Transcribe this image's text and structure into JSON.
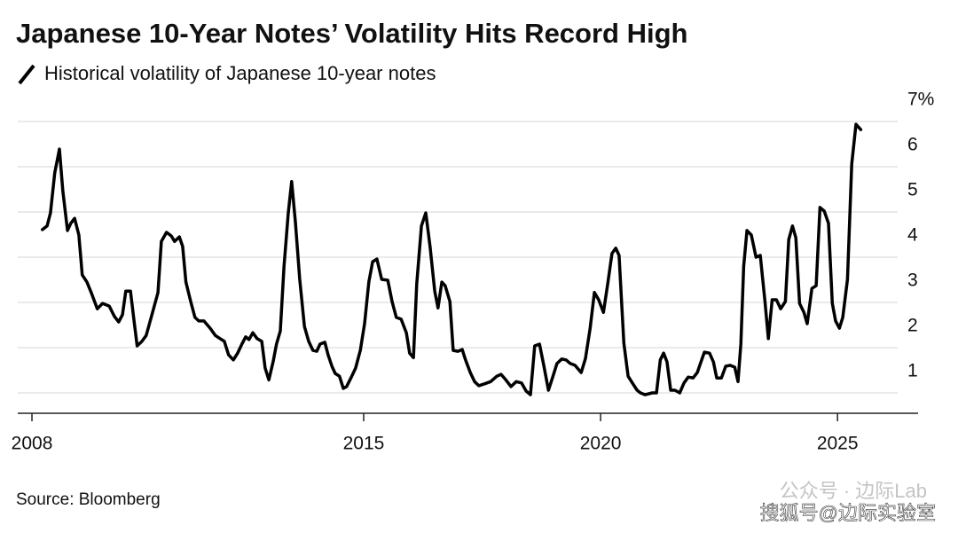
{
  "chart_data": {
    "type": "line",
    "title": "Japanese 10-Year Notes’ Volatility Hits Record High",
    "subtitle": "Historical volatility of Japanese 10-year notes",
    "source": "Source: Bloomberg",
    "watermark": [
      "公众号 · 边际Lab",
      "搜狐号@边际实验室"
    ],
    "color": "#000000",
    "x": [
      2008.22,
      2008.32,
      2008.39,
      2008.48,
      2008.58,
      2008.65,
      2008.75,
      2008.82,
      2008.9,
      2008.99,
      2009.06,
      2009.16,
      2009.25,
      2009.38,
      2009.49,
      2009.63,
      2009.74,
      2009.83,
      2009.91,
      2009.98,
      2010.08,
      2010.15,
      2010.22,
      2010.32,
      2010.41,
      2010.54,
      2010.66,
      2010.73,
      2010.84,
      2010.94,
      2011.01,
      2011.11,
      2011.18,
      2011.25,
      2011.35,
      2011.44,
      2011.52,
      2011.63,
      2011.76,
      2011.87,
      2011.97,
      2012.06,
      2012.15,
      2012.25,
      2012.34,
      2012.43,
      2012.51,
      2012.58,
      2012.66,
      2012.75,
      2012.85,
      2012.92,
      2013.0,
      2013.09,
      2013.16,
      2013.24,
      2013.32,
      2013.41,
      2013.48,
      2013.56,
      2013.65,
      2013.75,
      2013.84,
      2013.93,
      2014.01,
      2014.08,
      2014.18,
      2014.25,
      2014.33,
      2014.4,
      2014.49,
      2014.57,
      2014.64,
      2014.74,
      2014.83,
      2014.93,
      2015.02,
      2015.11,
      2015.19,
      2015.28,
      2015.38,
      2015.51,
      2015.6,
      2015.69,
      2015.79,
      2015.9,
      2015.97,
      2016.05,
      2016.12,
      2016.22,
      2016.31,
      2016.4,
      2016.5,
      2016.57,
      2016.65,
      2016.72,
      2016.82,
      2016.89,
      2016.99,
      2017.08,
      2017.15,
      2017.25,
      2017.34,
      2017.43,
      2017.55,
      2017.68,
      2017.81,
      2017.9,
      2018.0,
      2018.11,
      2018.22,
      2018.33,
      2018.43,
      2018.52,
      2018.61,
      2018.71,
      2018.8,
      2018.9,
      2018.99,
      2019.08,
      2019.18,
      2019.27,
      2019.36,
      2019.46,
      2019.59,
      2019.68,
      2019.78,
      2019.87,
      2019.96,
      2020.06,
      2020.15,
      2020.24,
      2020.32,
      2020.39,
      2020.49,
      2020.58,
      2020.67,
      2020.77,
      2020.84,
      2020.94,
      2021.09,
      2021.18,
      2021.26,
      2021.33,
      2021.4,
      2021.48,
      2021.57,
      2021.67,
      2021.76,
      2021.85,
      2021.95,
      2022.04,
      2022.12,
      2022.19,
      2022.3,
      2022.38,
      2022.45,
      2022.55,
      2022.64,
      2022.73,
      2022.83,
      2022.9,
      2022.96,
      2023.02,
      2023.09,
      2023.18,
      2023.28,
      2023.37,
      2023.47,
      2023.54,
      2023.62,
      2023.71,
      2023.8,
      2023.9,
      2023.97,
      2024.05,
      2024.12,
      2024.2,
      2024.29,
      2024.36,
      2024.46,
      2024.55,
      2024.63,
      2024.72,
      2024.81,
      2024.89,
      2024.96,
      2025.04,
      2025.11,
      2025.21,
      2025.3,
      2025.39,
      2025.49
    ],
    "values": [
      4.61,
      4.69,
      4.98,
      5.86,
      6.39,
      5.47,
      4.59,
      4.75,
      4.86,
      4.49,
      3.61,
      3.45,
      3.22,
      2.86,
      2.98,
      2.92,
      2.69,
      2.57,
      2.73,
      3.25,
      3.25,
      2.63,
      2.04,
      2.14,
      2.27,
      2.76,
      3.22,
      4.35,
      4.55,
      4.47,
      4.35,
      4.45,
      4.24,
      3.45,
      3.02,
      2.67,
      2.59,
      2.59,
      2.43,
      2.27,
      2.2,
      2.14,
      1.84,
      1.73,
      1.88,
      2.08,
      2.24,
      2.18,
      2.33,
      2.2,
      2.14,
      1.55,
      1.29,
      1.69,
      2.08,
      2.37,
      3.8,
      4.98,
      5.67,
      4.78,
      3.51,
      2.47,
      2.14,
      1.94,
      1.92,
      2.08,
      2.12,
      1.84,
      1.59,
      1.43,
      1.37,
      1.1,
      1.14,
      1.35,
      1.55,
      1.94,
      2.53,
      3.45,
      3.9,
      3.96,
      3.51,
      3.49,
      3.02,
      2.67,
      2.63,
      2.33,
      1.88,
      1.78,
      3.41,
      4.69,
      4.98,
      4.24,
      3.25,
      2.88,
      3.45,
      3.37,
      3.02,
      1.94,
      1.92,
      1.96,
      1.73,
      1.45,
      1.25,
      1.16,
      1.2,
      1.25,
      1.37,
      1.41,
      1.29,
      1.14,
      1.25,
      1.22,
      1.04,
      0.96,
      2.04,
      2.08,
      1.61,
      1.06,
      1.35,
      1.65,
      1.75,
      1.73,
      1.65,
      1.61,
      1.45,
      1.76,
      2.43,
      3.22,
      3.06,
      2.78,
      3.41,
      4.08,
      4.2,
      4.04,
      2.1,
      1.37,
      1.22,
      1.06,
      1.0,
      0.96,
      1.0,
      1.0,
      1.73,
      1.88,
      1.69,
      1.06,
      1.06,
      1.0,
      1.22,
      1.35,
      1.33,
      1.45,
      1.69,
      1.9,
      1.88,
      1.69,
      1.33,
      1.33,
      1.59,
      1.61,
      1.57,
      1.25,
      2.08,
      3.8,
      4.59,
      4.49,
      4.0,
      4.04,
      3.02,
      2.2,
      3.06,
      3.06,
      2.86,
      3.02,
      4.39,
      4.69,
      4.43,
      2.98,
      2.78,
      2.53,
      3.31,
      3.37,
      5.1,
      5.02,
      4.75,
      2.98,
      2.59,
      2.43,
      2.67,
      3.51,
      6.06,
      6.94,
      6.82
    ],
    "xlim": [
      2007.7,
      2026.7
    ],
    "xticks": [
      2008,
      2015,
      2020,
      2025
    ],
    "ylim": [
      0.55,
      7.0
    ],
    "yticks": [
      1,
      2,
      3,
      4,
      5,
      6,
      {
        "value": 7,
        "label": "7%"
      }
    ],
    "grid": true
  }
}
